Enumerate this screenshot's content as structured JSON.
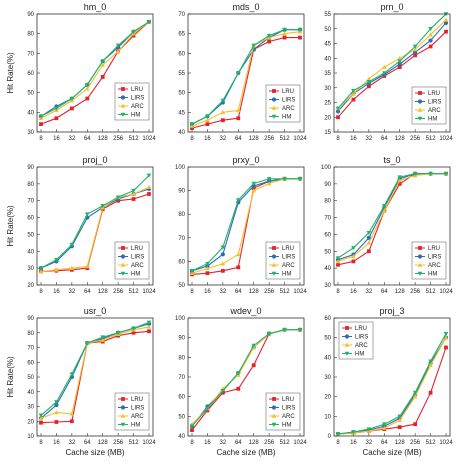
{
  "figure": {
    "xlabel_shared": "Cache size (MB)",
    "ylabel_shared": "Hit Rate(%)"
  },
  "chart_data": [
    {
      "type": "line",
      "title": "hm_0",
      "xlabel": "",
      "ylabel": "Hit Rate(%)",
      "categories": [
        "8",
        "16",
        "32",
        "64",
        "128",
        "256",
        "512",
        "1024"
      ],
      "ylim": [
        30,
        90
      ],
      "yticks": [
        30,
        40,
        50,
        60,
        70,
        80,
        90
      ],
      "legend_position": "right-middle",
      "legend_offset": 0,
      "series": [
        {
          "name": "LRU",
          "color": "#e3232c",
          "marker": "square",
          "values": [
            34,
            37,
            42,
            47,
            58,
            71,
            79,
            86
          ]
        },
        {
          "name": "LIRS",
          "color": "#2e6db4",
          "marker": "circle",
          "values": [
            38,
            43,
            47,
            54,
            66,
            73,
            81,
            86
          ]
        },
        {
          "name": "ARC",
          "color": "#f2c12e",
          "marker": "triangle",
          "values": [
            37,
            41,
            46,
            52,
            64,
            71,
            80,
            86
          ]
        },
        {
          "name": "HM",
          "color": "#21b36b",
          "marker": "triangle-down",
          "values": [
            38,
            42,
            47,
            54,
            66,
            74,
            81,
            86
          ]
        }
      ]
    },
    {
      "type": "line",
      "title": "mds_0",
      "xlabel": "",
      "ylabel": "",
      "categories": [
        "8",
        "16",
        "32",
        "64",
        "128",
        "256",
        "512",
        "1024"
      ],
      "ylim": [
        40,
        70
      ],
      "yticks": [
        40,
        45,
        50,
        55,
        60,
        65,
        70
      ],
      "legend_position": "right-middle",
      "legend_offset": 2,
      "series": [
        {
          "name": "LRU",
          "color": "#e3232c",
          "marker": "square",
          "values": [
            41,
            42,
            43,
            43.5,
            61,
            63,
            64,
            64
          ]
        },
        {
          "name": "LIRS",
          "color": "#2e6db4",
          "marker": "circle",
          "values": [
            42,
            44,
            47.5,
            55,
            61,
            64,
            66,
            66
          ]
        },
        {
          "name": "ARC",
          "color": "#f2c12e",
          "marker": "triangle",
          "values": [
            41.5,
            43,
            45,
            45.5,
            62,
            64,
            65,
            65.5
          ]
        },
        {
          "name": "HM",
          "color": "#21b36b",
          "marker": "triangle-down",
          "values": [
            42,
            44,
            48,
            55,
            62,
            64.5,
            66,
            66
          ]
        }
      ]
    },
    {
      "type": "line",
      "title": "prn_0",
      "xlabel": "",
      "ylabel": "",
      "categories": [
        "8",
        "16",
        "32",
        "64",
        "128",
        "256",
        "512",
        "1024"
      ],
      "ylim": [
        15,
        55
      ],
      "yticks": [
        15,
        20,
        25,
        30,
        35,
        40,
        45,
        50,
        55
      ],
      "legend_position": "right-middle",
      "legend_offset": 4,
      "series": [
        {
          "name": "LRU",
          "color": "#e3232c",
          "marker": "square",
          "values": [
            20,
            26,
            30.5,
            34,
            37,
            41,
            44,
            49
          ]
        },
        {
          "name": "LIRS",
          "color": "#2e6db4",
          "marker": "circle",
          "values": [
            22,
            28,
            31.5,
            34.5,
            38,
            42,
            46,
            52
          ]
        },
        {
          "name": "ARC",
          "color": "#f2c12e",
          "marker": "triangle",
          "values": [
            23,
            28,
            33,
            37,
            40,
            43,
            48,
            53
          ]
        },
        {
          "name": "HM",
          "color": "#21b36b",
          "marker": "triangle-down",
          "values": [
            23,
            29,
            32,
            35,
            39,
            44,
            50,
            55
          ]
        }
      ]
    },
    {
      "type": "line",
      "title": "proj_0",
      "xlabel": "",
      "ylabel": "Hit Rate(%)",
      "categories": [
        "8",
        "16",
        "32",
        "64",
        "128",
        "256",
        "512",
        "1024"
      ],
      "ylim": [
        20,
        90
      ],
      "yticks": [
        20,
        30,
        40,
        50,
        60,
        70,
        80,
        90
      ],
      "legend_position": "right-bottom",
      "legend_offset": 0,
      "series": [
        {
          "name": "LRU",
          "color": "#e3232c",
          "marker": "square",
          "values": [
            28,
            28.5,
            29,
            30,
            65,
            70,
            71,
            74
          ]
        },
        {
          "name": "LIRS",
          "color": "#2e6db4",
          "marker": "circle",
          "values": [
            30,
            34,
            43,
            60,
            66,
            71,
            74,
            77
          ]
        },
        {
          "name": "ARC",
          "color": "#f2c12e",
          "marker": "triangle",
          "values": [
            28,
            29,
            30,
            31,
            66,
            72,
            74,
            78
          ]
        },
        {
          "name": "HM",
          "color": "#21b36b",
          "marker": "triangle-down",
          "values": [
            30,
            35,
            44,
            62,
            67,
            72,
            76,
            85
          ]
        }
      ]
    },
    {
      "type": "line",
      "title": "prxy_0",
      "xlabel": "",
      "ylabel": "",
      "categories": [
        "8",
        "16",
        "32",
        "64",
        "128",
        "256",
        "512",
        "1024"
      ],
      "ylim": [
        50,
        100
      ],
      "yticks": [
        50,
        60,
        70,
        80,
        90,
        100
      ],
      "legend_position": "right-bottom",
      "legend_offset": 2,
      "series": [
        {
          "name": "LRU",
          "color": "#e3232c",
          "marker": "square",
          "values": [
            54.5,
            55,
            56,
            57.5,
            91,
            94,
            95,
            95
          ]
        },
        {
          "name": "LIRS",
          "color": "#2e6db4",
          "marker": "circle",
          "values": [
            56,
            58,
            63,
            85,
            92,
            94,
            95,
            95
          ]
        },
        {
          "name": "ARC",
          "color": "#f2c12e",
          "marker": "triangle",
          "values": [
            55,
            57,
            59,
            63,
            90,
            93,
            95,
            95
          ]
        },
        {
          "name": "HM",
          "color": "#21b36b",
          "marker": "triangle-down",
          "values": [
            56,
            59,
            66,
            86,
            93,
            95,
            95,
            95
          ]
        }
      ]
    },
    {
      "type": "line",
      "title": "ts_0",
      "xlabel": "",
      "ylabel": "",
      "categories": [
        "8",
        "16",
        "32",
        "64",
        "128",
        "256",
        "512",
        "1024"
      ],
      "ylim": [
        30,
        100
      ],
      "yticks": [
        30,
        40,
        50,
        60,
        70,
        80,
        90,
        100
      ],
      "legend_position": "right-bottom",
      "legend_offset": 4,
      "series": [
        {
          "name": "LRU",
          "color": "#e3232c",
          "marker": "square",
          "values": [
            42,
            44,
            50,
            74,
            90,
            96,
            96,
            96
          ]
        },
        {
          "name": "LIRS",
          "color": "#2e6db4",
          "marker": "circle",
          "values": [
            45,
            48,
            58,
            76,
            93,
            96,
            96,
            96
          ]
        },
        {
          "name": "ARC",
          "color": "#f2c12e",
          "marker": "triangle",
          "values": [
            44,
            47,
            55,
            74,
            92,
            95,
            96,
            96
          ]
        },
        {
          "name": "HM",
          "color": "#21b36b",
          "marker": "triangle-down",
          "values": [
            46,
            52,
            61,
            77,
            94,
            96,
            96,
            96
          ]
        }
      ]
    },
    {
      "type": "line",
      "title": "usr_0",
      "xlabel": "Cache size (MB)",
      "ylabel": "Hit Rate(%)",
      "categories": [
        "8",
        "16",
        "32",
        "64",
        "128",
        "256",
        "512",
        "1024"
      ],
      "ylim": [
        10,
        90
      ],
      "yticks": [
        10,
        20,
        30,
        40,
        50,
        60,
        70,
        80,
        90
      ],
      "legend_position": "right-bottom",
      "legend_offset": 0,
      "series": [
        {
          "name": "LRU",
          "color": "#e3232c",
          "marker": "square",
          "values": [
            19,
            19.5,
            20,
            73,
            74,
            78,
            80,
            81
          ]
        },
        {
          "name": "LIRS",
          "color": "#2e6db4",
          "marker": "circle",
          "values": [
            22,
            31,
            50,
            73,
            76,
            80,
            83,
            86
          ]
        },
        {
          "name": "ARC",
          "color": "#f2c12e",
          "marker": "triangle",
          "values": [
            22,
            26,
            25,
            73,
            75,
            79,
            82,
            84
          ]
        },
        {
          "name": "HM",
          "color": "#21b36b",
          "marker": "triangle-down",
          "values": [
            24,
            33,
            52,
            73,
            77,
            80,
            83,
            87
          ]
        }
      ]
    },
    {
      "type": "line",
      "title": "wdev_0",
      "xlabel": "Cache size (MB)",
      "ylabel": "",
      "categories": [
        "8",
        "16",
        "32",
        "64",
        "128",
        "256",
        "512",
        "1024"
      ],
      "ylim": [
        40,
        100
      ],
      "yticks": [
        40,
        50,
        60,
        70,
        80,
        90,
        100
      ],
      "legend_position": "right-bottom",
      "legend_offset": 2,
      "series": [
        {
          "name": "LRU",
          "color": "#e3232c",
          "marker": "square",
          "values": [
            43,
            53,
            62,
            64,
            76,
            92,
            94,
            94
          ]
        },
        {
          "name": "LIRS",
          "color": "#2e6db4",
          "marker": "circle",
          "values": [
            45,
            55,
            63,
            72,
            85,
            92,
            94,
            94
          ]
        },
        {
          "name": "ARC",
          "color": "#f2c12e",
          "marker": "triangle",
          "values": [
            46,
            54,
            64,
            71,
            85,
            92,
            94,
            94
          ]
        },
        {
          "name": "HM",
          "color": "#21b36b",
          "marker": "triangle-down",
          "values": [
            45,
            54,
            63,
            72,
            86,
            92,
            94,
            94
          ]
        }
      ]
    },
    {
      "type": "line",
      "title": "proj_3",
      "xlabel": "Cache size (MB)",
      "ylabel": "",
      "categories": [
        "8",
        "16",
        "32",
        "64",
        "128",
        "256",
        "512",
        "1024"
      ],
      "ylim": [
        0,
        60
      ],
      "yticks": [
        0,
        10,
        20,
        30,
        40,
        50,
        60
      ],
      "legend_position": "left-top",
      "legend_offset": 4,
      "series": [
        {
          "name": "LRU",
          "color": "#e3232c",
          "marker": "square",
          "values": [
            1,
            1.5,
            2.5,
            3.5,
            4.5,
            6,
            22,
            45
          ]
        },
        {
          "name": "LIRS",
          "color": "#2e6db4",
          "marker": "circle",
          "values": [
            1,
            2,
            3,
            5,
            9,
            21,
            37,
            50
          ]
        },
        {
          "name": "ARC",
          "color": "#f2c12e",
          "marker": "triangle",
          "values": [
            1,
            1.5,
            2.5,
            4,
            8,
            20,
            36,
            50
          ]
        },
        {
          "name": "HM",
          "color": "#21b36b",
          "marker": "triangle-down",
          "values": [
            1,
            2,
            3.5,
            6,
            10,
            22,
            38,
            52
          ]
        }
      ]
    }
  ]
}
